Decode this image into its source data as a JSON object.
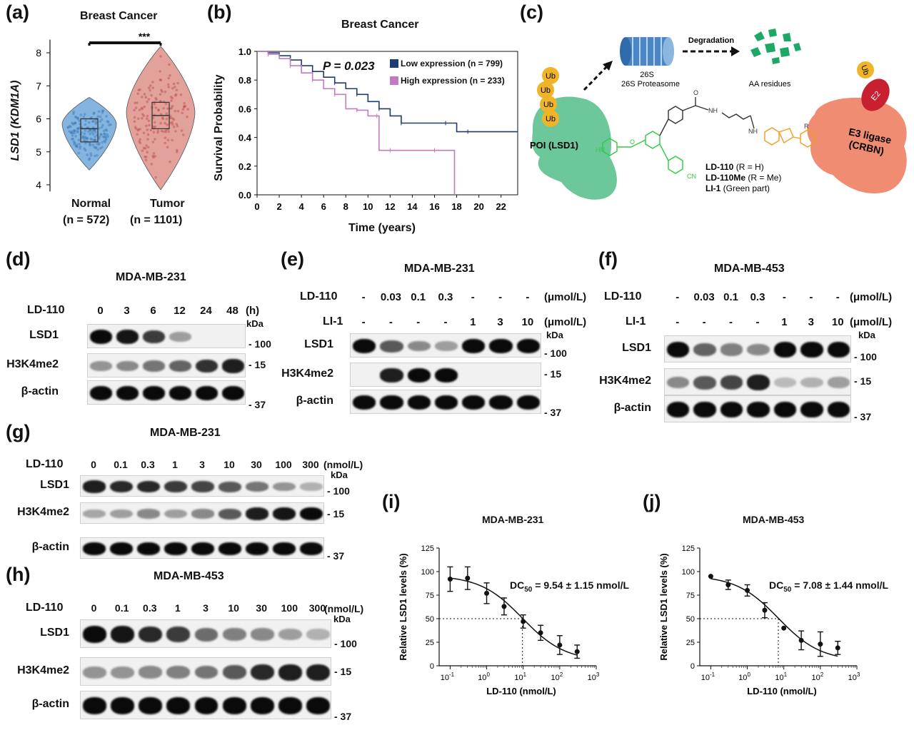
{
  "panels": {
    "a": {
      "label": "(a)",
      "title": "Breast Cancer",
      "ylabel": "LSD1 (KDM1A)",
      "sig": "***",
      "yticks": [
        "8",
        "7",
        "6",
        "5",
        "4"
      ],
      "groups": [
        {
          "name": "Normal",
          "n": "(n = 572)",
          "color": "#5b9bd5"
        },
        {
          "name": "Tumor",
          "n": "(n = 1101)",
          "color": "#d9827a"
        }
      ]
    },
    "b": {
      "label": "(b)",
      "title": "Breast Cancer",
      "pvalue": "P = 0.023",
      "ylabel": "Survival Probability",
      "xlabel": "Time (years)",
      "yticks": [
        "1.0",
        "0.8",
        "0.6",
        "0.4",
        "0.2",
        "0.0"
      ],
      "xticks": [
        "0",
        "2",
        "4",
        "6",
        "8",
        "10",
        "12",
        "14",
        "16",
        "18",
        "20",
        "22"
      ],
      "legend": [
        {
          "text": "Low expression (n = 799)",
          "color": "#1f3b73"
        },
        {
          "text": "High expression (n = 233)",
          "color": "#c27bc2"
        }
      ]
    },
    "c": {
      "label": "(c)",
      "proteasome": "26S Proteasome",
      "degradation": "Degradation",
      "residues": "AA residues",
      "poi": "POI (LSD1)",
      "ub": "Ub",
      "e2": "E2",
      "e3": "E3 ligase (CRBN)",
      "compounds": [
        "LD-110 (R = H)",
        "LD-110Me (R = Me)",
        "LI-1 (Green part)"
      ],
      "chem": {
        "nh": "NH",
        "hn": "HN",
        "cn": "CN",
        "o": "O",
        "r": "R"
      }
    },
    "d": {
      "label": "(d)",
      "title": "MDA-MB-231",
      "treat": "LD-110",
      "lanes": [
        "0",
        "3",
        "6",
        "12",
        "24",
        "48"
      ],
      "unit": "(h)",
      "rows": [
        "LSD1",
        "H3K4me2",
        "β-actin"
      ],
      "kda": "kDa",
      "markers": [
        "100",
        "15",
        "37"
      ],
      "intensity": {
        "LSD1": [
          1,
          0.95,
          0.75,
          0.25,
          0,
          0
        ],
        "H3K4me2": [
          0.3,
          0.35,
          0.45,
          0.55,
          0.8,
          0.9
        ],
        "actin": [
          1,
          1,
          1,
          1,
          1,
          1
        ]
      }
    },
    "e": {
      "label": "(e)",
      "title": "MDA-MB-231",
      "treat1": "LD-110",
      "treat2": "LI-1",
      "lanes1": [
        "-",
        "0.03",
        "0.1",
        "0.3",
        "-",
        "-",
        "-"
      ],
      "unit1": "(μmol/L)",
      "lanes2": [
        "-",
        "-",
        "-",
        "-",
        "1",
        "3",
        "10"
      ],
      "unit2": "(μmol/L)",
      "rows": [
        "LSD1",
        "H3K4me2",
        "β-actin"
      ],
      "kda": "kDa",
      "markers": [
        "100",
        "15",
        "37"
      ],
      "intensity": {
        "LSD1": [
          1,
          0.6,
          0.35,
          0.25,
          1,
          1,
          1
        ],
        "H3K4me2": [
          0,
          0.9,
          1,
          1,
          0,
          0,
          0
        ],
        "actin": [
          1,
          1,
          1,
          1,
          1,
          1,
          1
        ]
      }
    },
    "f": {
      "label": "(f)",
      "title": "MDA-MB-453",
      "treat1": "LD-110",
      "treat2": "LI-1",
      "lanes1": [
        "-",
        "0.03",
        "0.1",
        "0.3",
        "-",
        "-",
        "-"
      ],
      "unit1": "(μmol/L)",
      "lanes2": [
        "-",
        "-",
        "-",
        "-",
        "1",
        "3",
        "10"
      ],
      "unit2": "(μmol/L)",
      "rows": [
        "LSD1",
        "H3K4me2",
        "β-actin"
      ],
      "kda": "kDa",
      "markers": [
        "100",
        "15",
        "37"
      ],
      "intensity": {
        "LSD1": [
          1,
          0.55,
          0.4,
          0.35,
          1,
          1,
          1
        ],
        "H3K4me2": [
          0.35,
          0.6,
          0.7,
          0.9,
          0.1,
          0.15,
          0.25
        ],
        "actin": [
          1,
          1,
          1,
          1,
          1,
          1,
          1
        ]
      }
    },
    "g": {
      "label": "(g)",
      "title": "MDA-MB-231",
      "treat": "LD-110",
      "lanes": [
        "0",
        "0.1",
        "0.3",
        "1",
        "3",
        "10",
        "30",
        "100",
        "300"
      ],
      "unit": "(nmol/L)",
      "rows": [
        "LSD1",
        "H3K4me2",
        "β-actin"
      ],
      "kda": "kDa",
      "markers": [
        "100",
        "15",
        "37"
      ],
      "intensity": {
        "LSD1": [
          0.9,
          0.85,
          0.85,
          0.75,
          0.7,
          0.6,
          0.45,
          0.3,
          0.15
        ],
        "H3K4me2": [
          0.2,
          0.25,
          0.35,
          0.25,
          0.35,
          0.6,
          0.9,
          0.95,
          1
        ],
        "actin": [
          1,
          1,
          1,
          1,
          1,
          1,
          1,
          1,
          1
        ]
      }
    },
    "h": {
      "label": "(h)",
      "title": "MDA-MB-453",
      "treat": "LD-110",
      "lanes": [
        "0",
        "0.1",
        "0.3",
        "1",
        "3",
        "10",
        "30",
        "100",
        "300"
      ],
      "unit": "(nmol/L)",
      "rows": [
        "LSD1",
        "H3K4me2",
        "β-actin"
      ],
      "kda": "kDa",
      "markers": [
        "100",
        "15",
        "37"
      ],
      "intensity": {
        "LSD1": [
          1,
          0.95,
          0.85,
          0.75,
          0.5,
          0.4,
          0.35,
          0.25,
          0.15
        ],
        "H3K4me2": [
          0.3,
          0.3,
          0.35,
          0.4,
          0.45,
          0.6,
          0.85,
          0.9,
          0.9
        ],
        "actin": [
          1,
          1,
          1,
          1,
          1,
          1,
          1,
          1,
          1
        ]
      }
    },
    "i": {
      "label": "(i)",
      "title": "MDA-MB-231",
      "dc50": "DC50 = 9.54 ± 1.15 nmol/L",
      "dc_pre": "DC",
      "dc_sub": "50",
      "dc_post": " = 9.54 ± 1.15 nmol/L"
    },
    "j": {
      "label": "(j)",
      "title": "MDA-MB-453",
      "dc50": "DC50 = 7.08 ± 1.44 nmol/L",
      "dc_pre": "DC",
      "dc_sub": "50",
      "dc_post": " = 7.08 ± 1.44 nmol/L"
    }
  },
  "chart_data": [
    {
      "panel": "a",
      "type": "violin",
      "title": "Breast Cancer",
      "ylabel": "LSD1 (KDM1A)",
      "categories": [
        "Normal",
        "Tumor"
      ],
      "ylim": [
        3.8,
        8.4
      ],
      "medians": [
        5.7,
        6.1
      ],
      "q1": [
        5.3,
        5.7
      ],
      "q3": [
        6.0,
        6.5
      ]
    },
    {
      "panel": "b",
      "type": "line",
      "title": "Breast Cancer",
      "xlabel": "Time (years)",
      "ylabel": "Survival Probability",
      "xlim": [
        0,
        23.5
      ],
      "ylim": [
        0,
        1.0
      ],
      "series": [
        {
          "name": "Low expression (n = 799)",
          "x": [
            0,
            1,
            2,
            3,
            4,
            5,
            6,
            7,
            8,
            9,
            10,
            11,
            12,
            13,
            15,
            17,
            18,
            19,
            20,
            23.5
          ],
          "y": [
            1.0,
            0.99,
            0.97,
            0.94,
            0.9,
            0.86,
            0.82,
            0.78,
            0.74,
            0.7,
            0.65,
            0.6,
            0.55,
            0.5,
            0.5,
            0.5,
            0.44,
            0.44,
            0.44,
            0.44
          ]
        },
        {
          "name": "High expression (n = 233)",
          "x": [
            0,
            1,
            2,
            3,
            4,
            5,
            6,
            7,
            8,
            9,
            10,
            10.8,
            11,
            12,
            14,
            16,
            17.8,
            17.8
          ],
          "y": [
            1.0,
            0.98,
            0.95,
            0.9,
            0.85,
            0.8,
            0.74,
            0.7,
            0.6,
            0.59,
            0.55,
            0.55,
            0.31,
            0.31,
            0.31,
            0.31,
            0.31,
            0.0
          ]
        }
      ]
    },
    {
      "panel": "i",
      "type": "scatter",
      "title": "MDA-MB-231",
      "xlabel": "LD-110 (nmol/L)",
      "ylabel": "Relative LSD1 levels (%)",
      "xscale": "log",
      "xlim": [
        0.05,
        1000
      ],
      "ylim": [
        0,
        125
      ],
      "yticks": [
        0,
        25,
        50,
        75,
        100,
        125
      ],
      "xtick_exps": [
        "-1",
        "0",
        "1",
        "2",
        "3"
      ],
      "x": [
        0.1,
        0.3,
        1,
        3,
        10,
        30,
        100,
        300
      ],
      "y": [
        92,
        93,
        77,
        63,
        47,
        35,
        22,
        15
      ],
      "err": [
        13,
        12,
        11,
        9,
        7,
        8,
        10,
        7
      ],
      "dc50": 9.54
    },
    {
      "panel": "j",
      "type": "scatter",
      "title": "MDA-MB-453",
      "xlabel": "LD-110 (nmol/L)",
      "ylabel": "Relative LSD1 levels (%)",
      "xscale": "log",
      "xlim": [
        0.05,
        1000
      ],
      "ylim": [
        0,
        125
      ],
      "yticks": [
        0,
        25,
        50,
        75,
        100,
        125
      ],
      "xtick_exps": [
        "-1",
        "0",
        "1",
        "2",
        "3"
      ],
      "x": [
        0.1,
        0.3,
        1,
        3,
        10,
        30,
        100,
        300
      ],
      "y": [
        95,
        86,
        80,
        59,
        40,
        27,
        23,
        19
      ],
      "err": [
        0,
        5,
        6,
        8,
        0,
        10,
        13,
        7
      ],
      "dc50": 7.08
    }
  ]
}
